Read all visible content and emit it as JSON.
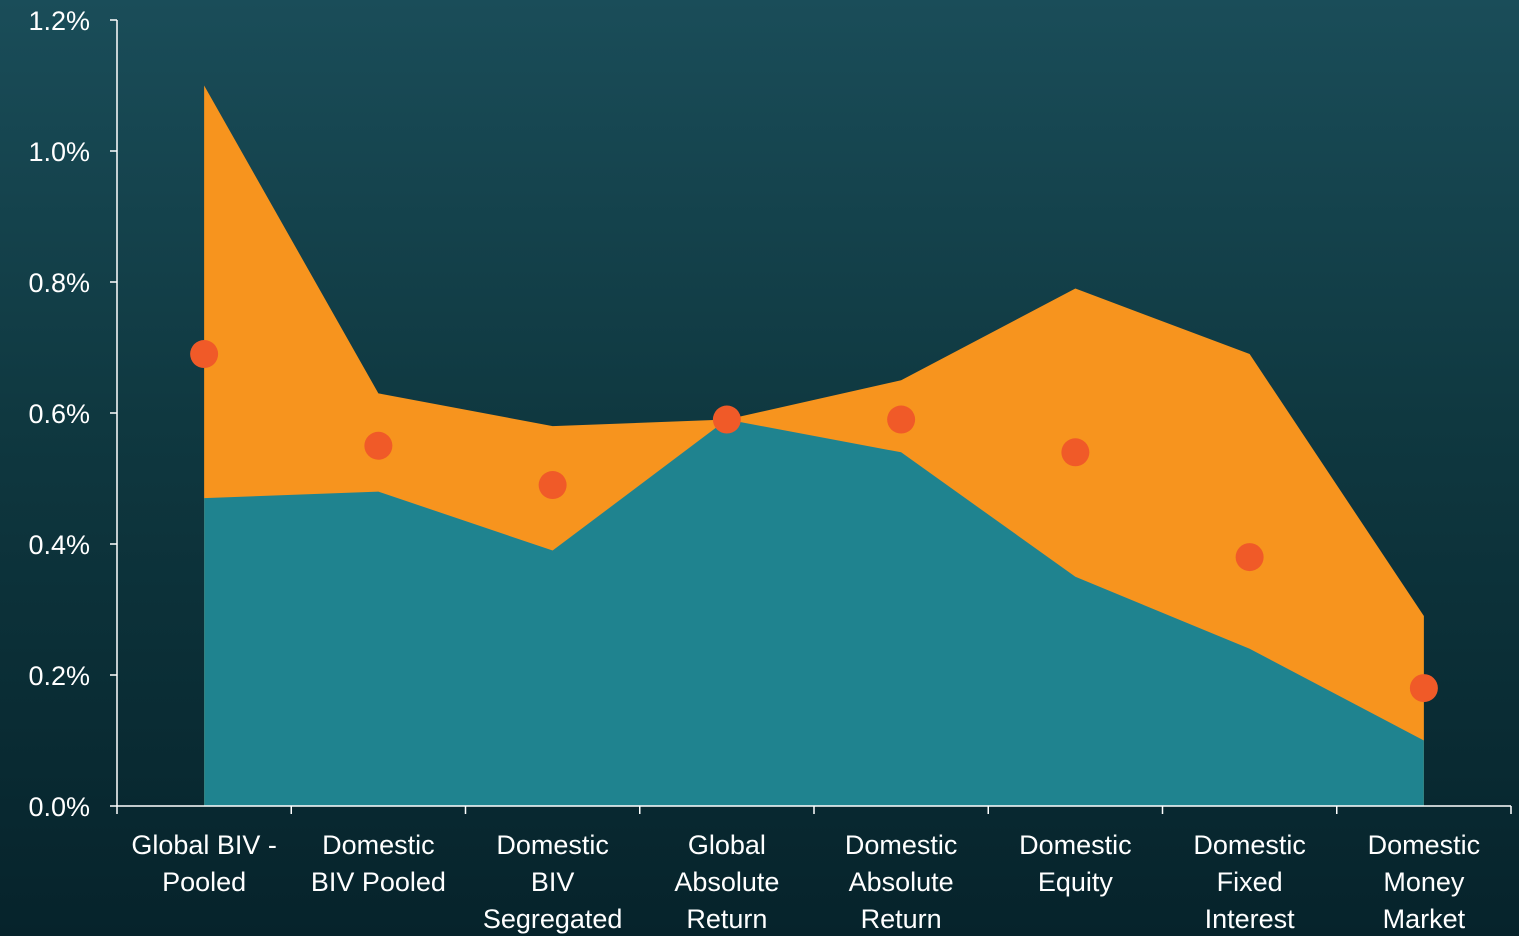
{
  "chart_data": {
    "type": "area",
    "title": "",
    "xlabel": "",
    "ylabel": "",
    "ylim": [
      0,
      1.2
    ],
    "yticks": [
      "0.0%",
      "0.2%",
      "0.4%",
      "0.6%",
      "0.8%",
      "1.0%",
      "1.2%"
    ],
    "ytick_values": [
      0,
      0.2,
      0.4,
      0.6,
      0.8,
      1.0,
      1.2
    ],
    "categories": [
      [
        "Global BIV -",
        "Pooled"
      ],
      [
        "Domestic",
        "BIV Pooled"
      ],
      [
        "Domestic",
        "BIV",
        "Segregated"
      ],
      [
        "Global",
        "Absolute",
        "Return"
      ],
      [
        "Domestic",
        "Absolute",
        "Return"
      ],
      [
        "Domestic",
        "Equity"
      ],
      [
        "Domestic",
        "Fixed",
        "Interest"
      ],
      [
        "Domestic",
        "Money",
        "Market"
      ]
    ],
    "series": [
      {
        "values": [
          0.47,
          0.48,
          0.39,
          0.59,
          0.54,
          0.35,
          0.24,
          0.1
        ],
        "color": "#1f838f",
        "kind": "area-lower"
      },
      {
        "values": [
          1.1,
          0.63,
          0.58,
          0.59,
          0.65,
          0.79,
          0.69,
          0.29
        ],
        "color": "#f7941e",
        "kind": "area-upper"
      },
      {
        "values": [
          0.69,
          0.55,
          0.49,
          0.59,
          0.59,
          0.54,
          0.38,
          0.18
        ],
        "color": "#f05a28",
        "kind": "points"
      }
    ],
    "grid": false,
    "legend": "none"
  }
}
